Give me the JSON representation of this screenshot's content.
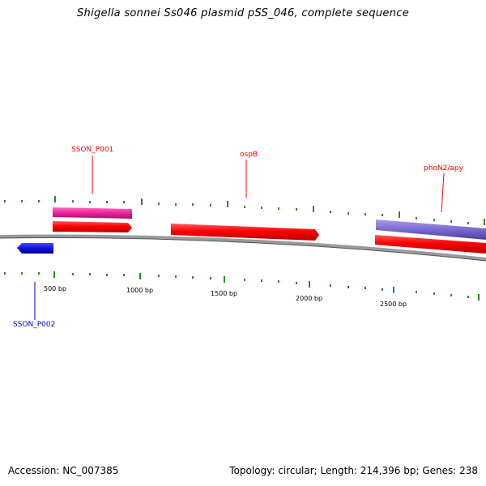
{
  "header": {
    "title": "Shigella sonnei Ss046 plasmid pSS_046, complete sequence"
  },
  "footer": {
    "accession": "Accession: NC_007385",
    "summary": "Topology: circular; Length: 214,396 bp; Genes: 238"
  },
  "map": {
    "scale_labels": [
      "500 bp",
      "1000 bp",
      "1500 bp",
      "2000 bp",
      "2500 bp"
    ],
    "genes": [
      {
        "name": "SSON_P001",
        "color": "#ff0000",
        "strand": "forward"
      },
      {
        "name": "ospB",
        "color": "#ff0000",
        "strand": "forward"
      },
      {
        "name": "phoN2/apy",
        "color": "#ff0000",
        "strand": "forward"
      },
      {
        "name": "SSON_P002",
        "color": "#0000cc",
        "strand": "reverse"
      }
    ],
    "colors": {
      "cds": "#ff0000",
      "gene_pink": "#e8259a",
      "gene_purple": "#7b68d0",
      "reverse_blue": "#1010e0",
      "tick_green": "#2a8a2a",
      "backbone": "#888888"
    }
  }
}
